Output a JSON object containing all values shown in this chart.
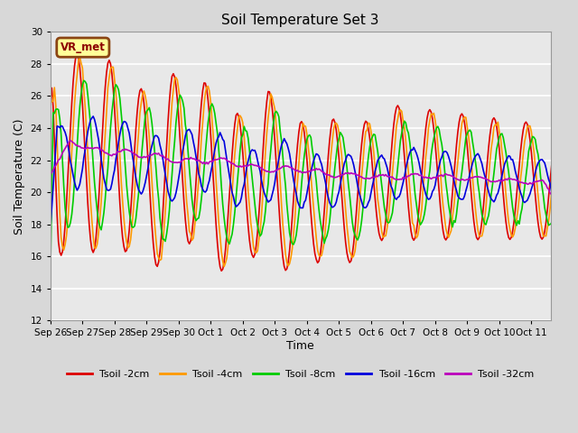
{
  "title": "Soil Temperature Set 3",
  "xlabel": "Time",
  "ylabel": "Soil Temperature (C)",
  "ylim": [
    12,
    30
  ],
  "yticks": [
    12,
    14,
    16,
    18,
    20,
    22,
    24,
    26,
    28,
    30
  ],
  "fig_bg": "#d8d8d8",
  "plot_bg": "#e8e8e8",
  "grid_color": "#ffffff",
  "annotation_text": "VR_met",
  "annotation_bg": "#ffff99",
  "annotation_border": "#8B4513",
  "annotation_text_color": "#8B0000",
  "lines": [
    {
      "label": "Tsoil -2cm",
      "color": "#dd0000",
      "lw": 1.2
    },
    {
      "label": "Tsoil -4cm",
      "color": "#ff9900",
      "lw": 1.2
    },
    {
      "label": "Tsoil -8cm",
      "color": "#00cc00",
      "lw": 1.2
    },
    {
      "label": "Tsoil -16cm",
      "color": "#0000dd",
      "lw": 1.2
    },
    {
      "label": "Tsoil -32cm",
      "color": "#bb00bb",
      "lw": 1.2
    }
  ],
  "tick_labels": [
    "Sep 26",
    "Sep 27",
    "Sep 28",
    "Sep 29",
    "Sep 30",
    "Oct 1",
    "Oct 2",
    "Oct 3",
    "Oct 4",
    "Oct 5",
    "Oct 6",
    "Oct 7",
    "Oct 8",
    "Oct 9",
    "Oct 10",
    "Oct 11"
  ],
  "figsize": [
    6.4,
    4.8
  ],
  "dpi": 100
}
